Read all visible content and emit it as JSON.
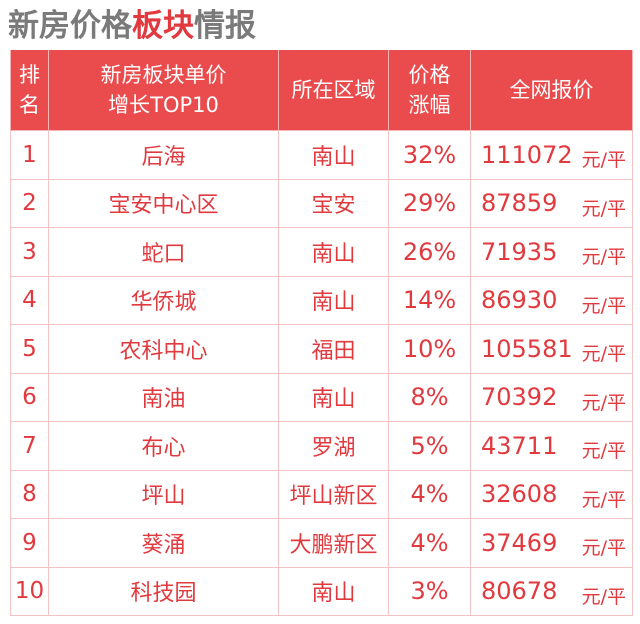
{
  "header": {
    "title": [
      "新房价格",
      "板块",
      "情报"
    ]
  },
  "table": {
    "columns": [
      [
        "排",
        "名"
      ],
      [
        "新房板块单价",
        "增长TOP10"
      ],
      [
        "所在区域"
      ],
      [
        "价格",
        "涨幅"
      ],
      [
        "全网报价"
      ]
    ],
    "rows": [
      [
        1,
        "后海",
        "南山",
        "32%",
        111072,
        "元/平"
      ],
      [
        2,
        "宝安中心区",
        "宝安",
        "29%",
        87859,
        "元/平"
      ],
      [
        3,
        "蛇口",
        "南山",
        "26%",
        71935,
        "元/平"
      ],
      [
        4,
        "华侨城",
        "南山",
        "14%",
        86930,
        "元/平"
      ],
      [
        5,
        "农科中心",
        "福田",
        "10%",
        105581,
        "元/平"
      ],
      [
        6,
        "南油",
        "南山",
        "8%",
        70392,
        "元/平"
      ],
      [
        7,
        "布心",
        "罗湖",
        "5%",
        43711,
        "元/平"
      ],
      [
        8,
        "坪山",
        "坪山新区",
        "4%",
        32608,
        "元/平"
      ],
      [
        9,
        "葵涌",
        "大鹏新区",
        "4%",
        37469,
        "元/平"
      ],
      [
        10,
        "科技园",
        "南山",
        "3%",
        80678,
        "元/平"
      ]
    ]
  }
}
